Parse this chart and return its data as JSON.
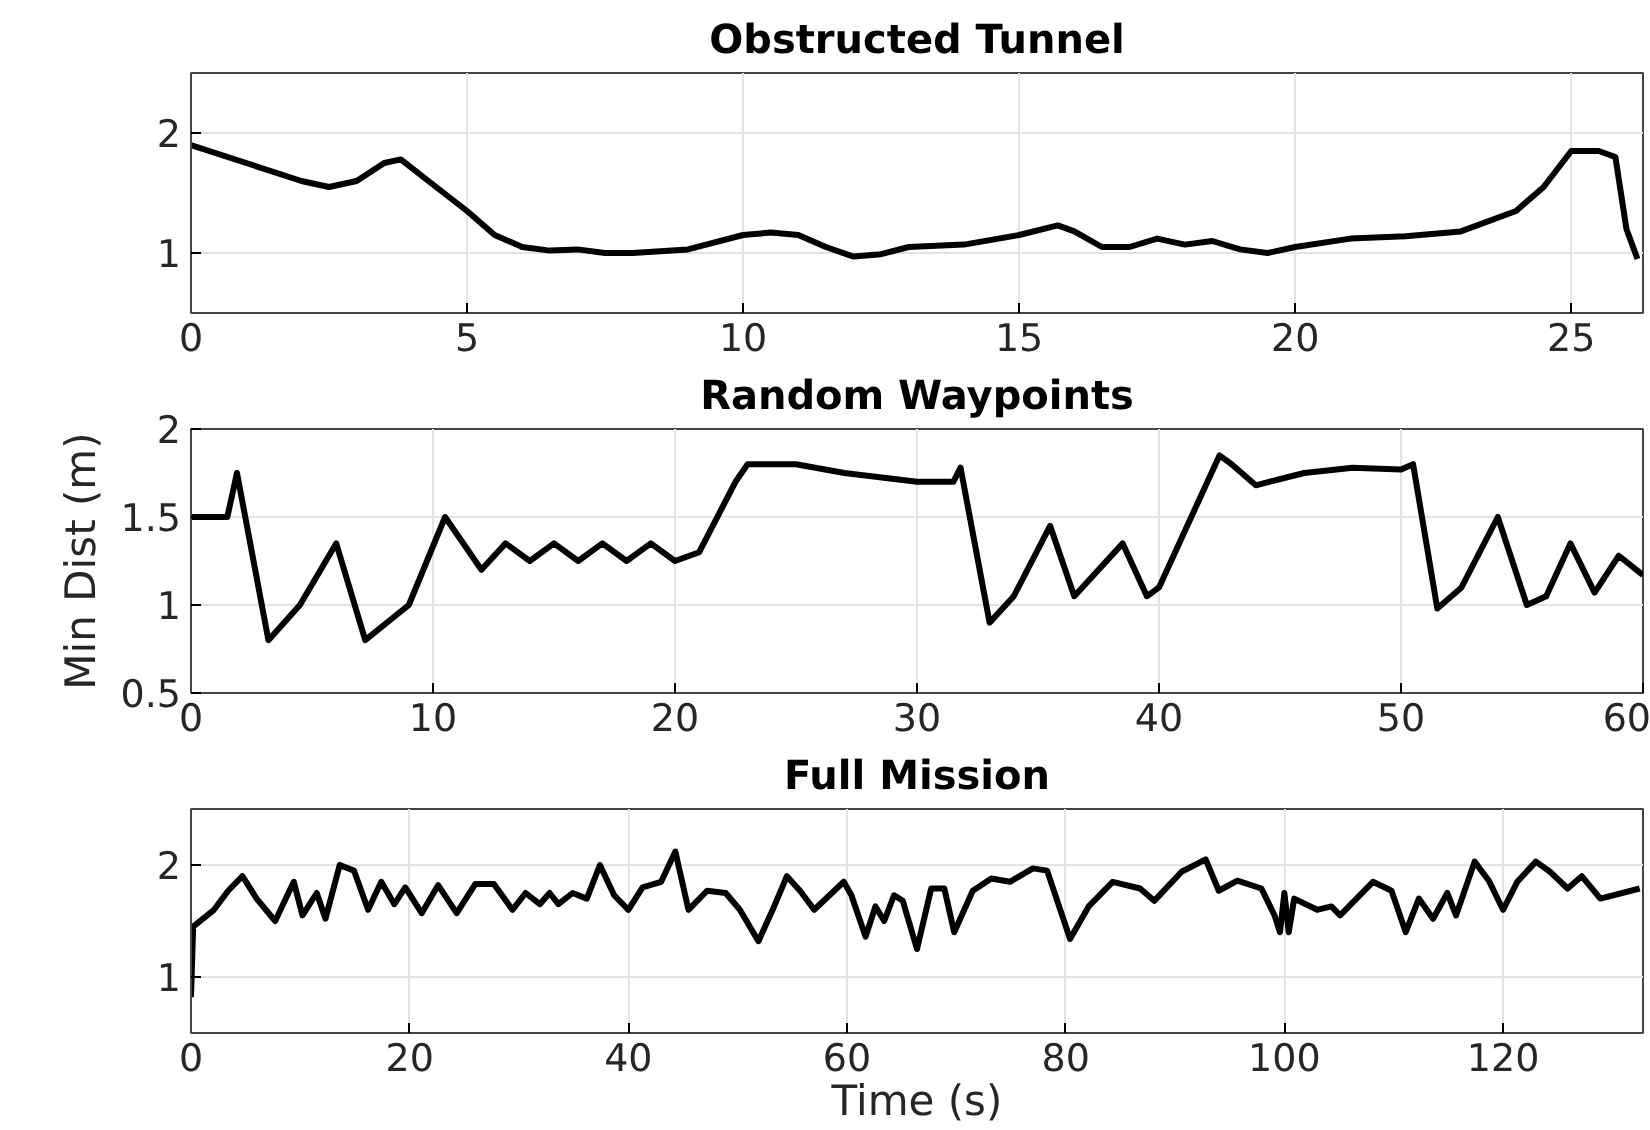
{
  "chart_data": [
    {
      "type": "line",
      "title": "Obstructed Tunnel",
      "xlim": [
        0,
        26.3
      ],
      "ylim": [
        0.5,
        2.5
      ],
      "xticks": [
        0,
        5,
        10,
        15,
        20,
        25
      ],
      "yticks": [
        1,
        2
      ],
      "grid": true,
      "marker": "none",
      "line_style": "solid",
      "series": [
        {
          "color": "#000000",
          "x": [
            0,
            1,
            2,
            2.5,
            3,
            3.5,
            3.8,
            4.3,
            5,
            5.5,
            6,
            6.5,
            7,
            7.5,
            8,
            9,
            10,
            10.5,
            11,
            11.5,
            12,
            12.5,
            13,
            14,
            15,
            15.7,
            16,
            16.5,
            17,
            17.5,
            18,
            18.5,
            19,
            19.5,
            20,
            21,
            22,
            23,
            24,
            24.5,
            25,
            25.5,
            25.8,
            26,
            26.2
          ],
          "values": [
            1.9,
            1.75,
            1.6,
            1.55,
            1.6,
            1.75,
            1.78,
            1.6,
            1.35,
            1.15,
            1.05,
            1.02,
            1.03,
            1.0,
            1.0,
            1.03,
            1.15,
            1.17,
            1.15,
            1.05,
            0.97,
            0.99,
            1.05,
            1.07,
            1.15,
            1.23,
            1.18,
            1.05,
            1.05,
            1.12,
            1.07,
            1.1,
            1.03,
            1.0,
            1.05,
            1.12,
            1.14,
            1.18,
            1.35,
            1.55,
            1.85,
            1.85,
            1.8,
            1.2,
            0.95
          ]
        }
      ]
    },
    {
      "type": "line",
      "title": "Random Waypoints",
      "ylabel": "Min Dist (m)",
      "xlim": [
        0,
        60
      ],
      "ylim": [
        0.5,
        2
      ],
      "xticks": [
        0,
        10,
        20,
        30,
        40,
        50,
        60
      ],
      "yticks": [
        0.5,
        1,
        1.5,
        2
      ],
      "grid": true,
      "marker": "none",
      "line_style": "solid",
      "series": [
        {
          "color": "#000000",
          "x": [
            0,
            1.5,
            1.9,
            3.2,
            4.5,
            6,
            7.2,
            9,
            10.5,
            12,
            13,
            14,
            15,
            16,
            17,
            18,
            19,
            20,
            21,
            22.5,
            23,
            25,
            27,
            30,
            31.5,
            31.8,
            33,
            34,
            35.5,
            36.5,
            38.5,
            39.5,
            40,
            42.5,
            43,
            44,
            46,
            48,
            50,
            50.5,
            51.5,
            52.5,
            54,
            55.2,
            56,
            57,
            58,
            59,
            60
          ],
          "values": [
            1.5,
            1.5,
            1.75,
            0.8,
            1.0,
            1.35,
            0.8,
            1.0,
            1.5,
            1.2,
            1.35,
            1.25,
            1.35,
            1.25,
            1.35,
            1.25,
            1.35,
            1.25,
            1.3,
            1.7,
            1.8,
            1.8,
            1.75,
            1.7,
            1.7,
            1.78,
            0.9,
            1.05,
            1.45,
            1.05,
            1.35,
            1.05,
            1.1,
            1.85,
            1.8,
            1.68,
            1.75,
            1.78,
            1.77,
            1.8,
            0.98,
            1.1,
            1.5,
            1.0,
            1.05,
            1.35,
            1.07,
            1.28,
            1.17
          ]
        }
      ]
    },
    {
      "type": "line",
      "title": "Full Mission",
      "xlabel": "Time (s)",
      "xlim": [
        0,
        132.8
      ],
      "ylim": [
        0.5,
        2.5
      ],
      "xticks": [
        0,
        20,
        40,
        60,
        80,
        100,
        120
      ],
      "yticks": [
        1,
        2
      ],
      "grid": true,
      "marker": "none",
      "line_style": "solid",
      "series": [
        {
          "color": "#000000",
          "x": [
            0,
            0.2,
            2.1,
            3.4,
            4.7,
            6,
            7.7,
            9.4,
            10.2,
            11.5,
            12.3,
            13.6,
            14.9,
            16.2,
            17.4,
            18.6,
            19.6,
            21.1,
            22.6,
            24.3,
            26,
            27.7,
            29.4,
            30.6,
            31.9,
            32.8,
            33.6,
            34.9,
            36.2,
            37.4,
            38.7,
            40,
            41.3,
            43,
            44.3,
            45.5,
            47.2,
            48.9,
            50.2,
            51.9,
            53.2,
            54.5,
            55.7,
            57,
            59.7,
            60.4,
            61.7,
            62.6,
            63.4,
            64.3,
            65.1,
            66.4,
            67.7,
            68.9,
            69.8,
            71.5,
            73.2,
            74.9,
            77,
            78.3,
            80.4,
            82.1,
            84.3,
            86.8,
            88.1,
            90.6,
            92.8,
            94,
            95.7,
            97.9,
            99.1,
            99.6,
            100,
            100.4,
            100.9,
            103,
            104.3,
            105.1,
            108.1,
            109.8,
            111.1,
            112.3,
            113.6,
            114.9,
            115.7,
            117.4,
            118.7,
            120,
            121.3,
            123,
            124.3,
            125.9,
            127.2,
            128.9,
            132.5
          ],
          "values": [
            0.82,
            1.45,
            1.6,
            1.77,
            1.9,
            1.7,
            1.5,
            1.85,
            1.55,
            1.75,
            1.52,
            2.0,
            1.95,
            1.6,
            1.85,
            1.65,
            1.8,
            1.57,
            1.82,
            1.57,
            1.83,
            1.83,
            1.6,
            1.75,
            1.65,
            1.75,
            1.65,
            1.75,
            1.7,
            2.0,
            1.73,
            1.6,
            1.8,
            1.85,
            2.12,
            1.6,
            1.77,
            1.75,
            1.6,
            1.32,
            1.6,
            1.9,
            1.77,
            1.6,
            1.85,
            1.73,
            1.36,
            1.63,
            1.5,
            1.73,
            1.68,
            1.25,
            1.79,
            1.79,
            1.4,
            1.77,
            1.88,
            1.85,
            1.97,
            1.95,
            1.34,
            1.63,
            1.85,
            1.79,
            1.68,
            1.94,
            2.05,
            1.77,
            1.86,
            1.79,
            1.55,
            1.4,
            1.75,
            1.4,
            1.7,
            1.6,
            1.63,
            1.55,
            1.85,
            1.77,
            1.4,
            1.7,
            1.52,
            1.75,
            1.55,
            2.03,
            1.86,
            1.6,
            1.85,
            2.03,
            1.94,
            1.79,
            1.9,
            1.7,
            1.79
          ]
        }
      ]
    }
  ]
}
